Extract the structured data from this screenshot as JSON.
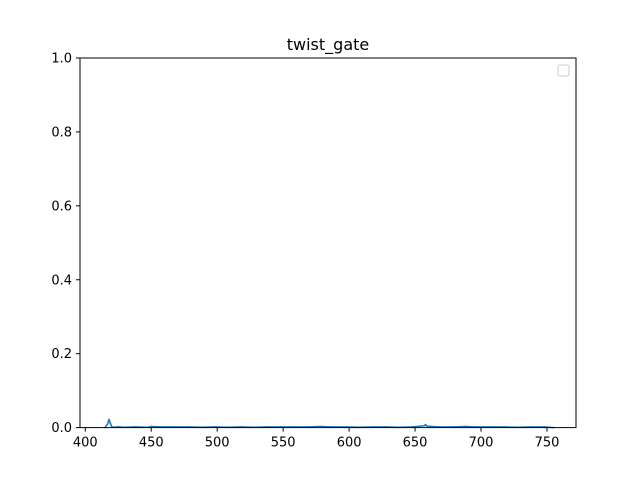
{
  "chart_data": {
    "type": "line",
    "title": "twist_gate",
    "xlabel": "",
    "ylabel": "",
    "xlim": [
      396,
      772
    ],
    "ylim": [
      0,
      1.0
    ],
    "x_ticks": [
      400,
      450,
      500,
      550,
      600,
      650,
      700,
      750
    ],
    "x_tick_labels": [
      "400",
      "450",
      "500",
      "550",
      "600",
      "650",
      "700",
      "750"
    ],
    "y_ticks": [
      0.0,
      0.2,
      0.4,
      0.6,
      0.8,
      1.0
    ],
    "y_tick_labels": [
      "0.0",
      "0.2",
      "0.4",
      "0.6",
      "0.8",
      "1.0"
    ],
    "grid": false,
    "legend": {
      "placement": "top-right",
      "entries": []
    },
    "series": [
      {
        "color": "#1f77b4",
        "x": [
          415,
          417,
          418,
          419,
          420,
          421,
          425,
          430,
          438,
          448,
          450,
          458,
          468,
          478,
          488,
          498,
          508,
          518,
          528,
          538,
          548,
          558,
          568,
          578,
          588,
          598,
          608,
          618,
          628,
          638,
          648,
          657,
          658,
          659,
          668,
          678,
          688,
          698,
          708,
          718,
          728,
          738,
          748,
          755
        ],
        "y": [
          0.0,
          0.01,
          0.022,
          0.012,
          0.003,
          0.001,
          0.002,
          0.001,
          0.002,
          0.001,
          0.003,
          0.002,
          0.002,
          0.002,
          0.001,
          0.002,
          0.001,
          0.002,
          0.001,
          0.002,
          0.002,
          0.002,
          0.002,
          0.003,
          0.002,
          0.002,
          0.001,
          0.002,
          0.002,
          0.001,
          0.002,
          0.005,
          0.008,
          0.004,
          0.002,
          0.002,
          0.003,
          0.002,
          0.002,
          0.002,
          0.001,
          0.002,
          0.002,
          0.0
        ]
      }
    ]
  }
}
